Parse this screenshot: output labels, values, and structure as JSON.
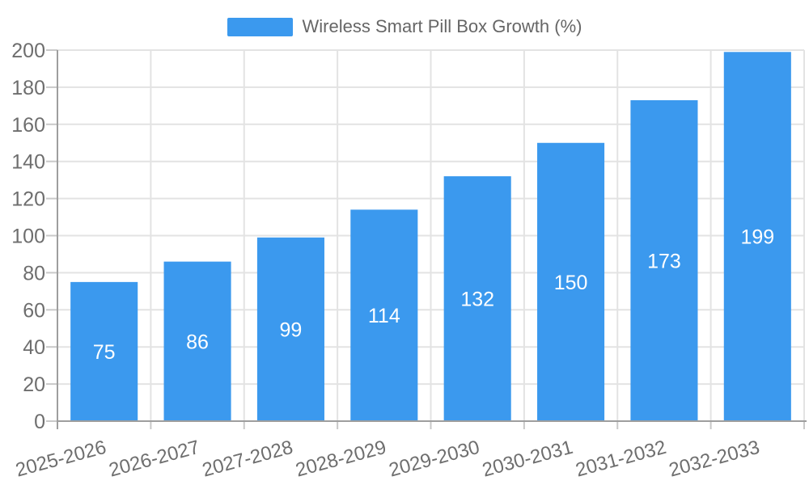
{
  "legend": {
    "label": "Wireless Smart Pill Box Growth (%)"
  },
  "chart_data": {
    "type": "bar",
    "title": "Wireless Smart Pill Box Growth (%)",
    "series_name": "Wireless Smart Pill Box Growth (%)",
    "categories": [
      "2025-2026",
      "2026-2027",
      "2027-2028",
      "2028-2029",
      "2029-2030",
      "2030-2031",
      "2031-2032",
      "2032-2033"
    ],
    "values": [
      75,
      86,
      99,
      114,
      132,
      150,
      173,
      199
    ],
    "xlabel": "",
    "ylabel": "",
    "ylim": [
      0,
      200
    ],
    "y_ticks": [
      0,
      20,
      40,
      60,
      80,
      100,
      120,
      140,
      160,
      180,
      200
    ],
    "grid": true,
    "legend_position": "top",
    "x_tick_rotation_deg": -15,
    "colors": {
      "bar": "#3B99EE",
      "value_label": "#ffffff",
      "grid": "#E3E3E3",
      "axis": "#9E9E9E",
      "tick_mark": "#C9C9C9",
      "tick_label": "#6E6E6E",
      "legend_text": "#666666",
      "background": "#ffffff"
    }
  }
}
